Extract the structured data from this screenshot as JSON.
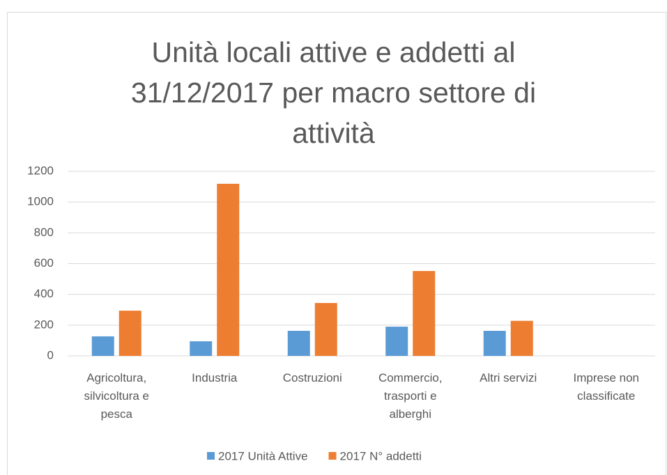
{
  "chart_data": {
    "type": "bar",
    "title": "Unità locali attive e addetti al 31/12/2017 per macro settore di attività",
    "categories": [
      "Agricoltura, silvicoltura e pesca",
      "Industria",
      "Costruzioni",
      "Commercio, trasporti e alberghi",
      "Altri servizi",
      "Imprese non classificate"
    ],
    "series": [
      {
        "name": "2017 Unità Attive",
        "color": "#5b9bd5",
        "values": [
          127,
          95,
          163,
          190,
          163,
          0
        ]
      },
      {
        "name": "2017 N° addetti",
        "color": "#ed7d31",
        "values": [
          294,
          1119,
          344,
          552,
          228,
          0
        ]
      }
    ],
    "ylim": [
      0,
      1200
    ],
    "yticks": [
      0,
      200,
      400,
      600,
      800,
      1000,
      1200
    ],
    "grid": true,
    "legend": "bottom"
  }
}
